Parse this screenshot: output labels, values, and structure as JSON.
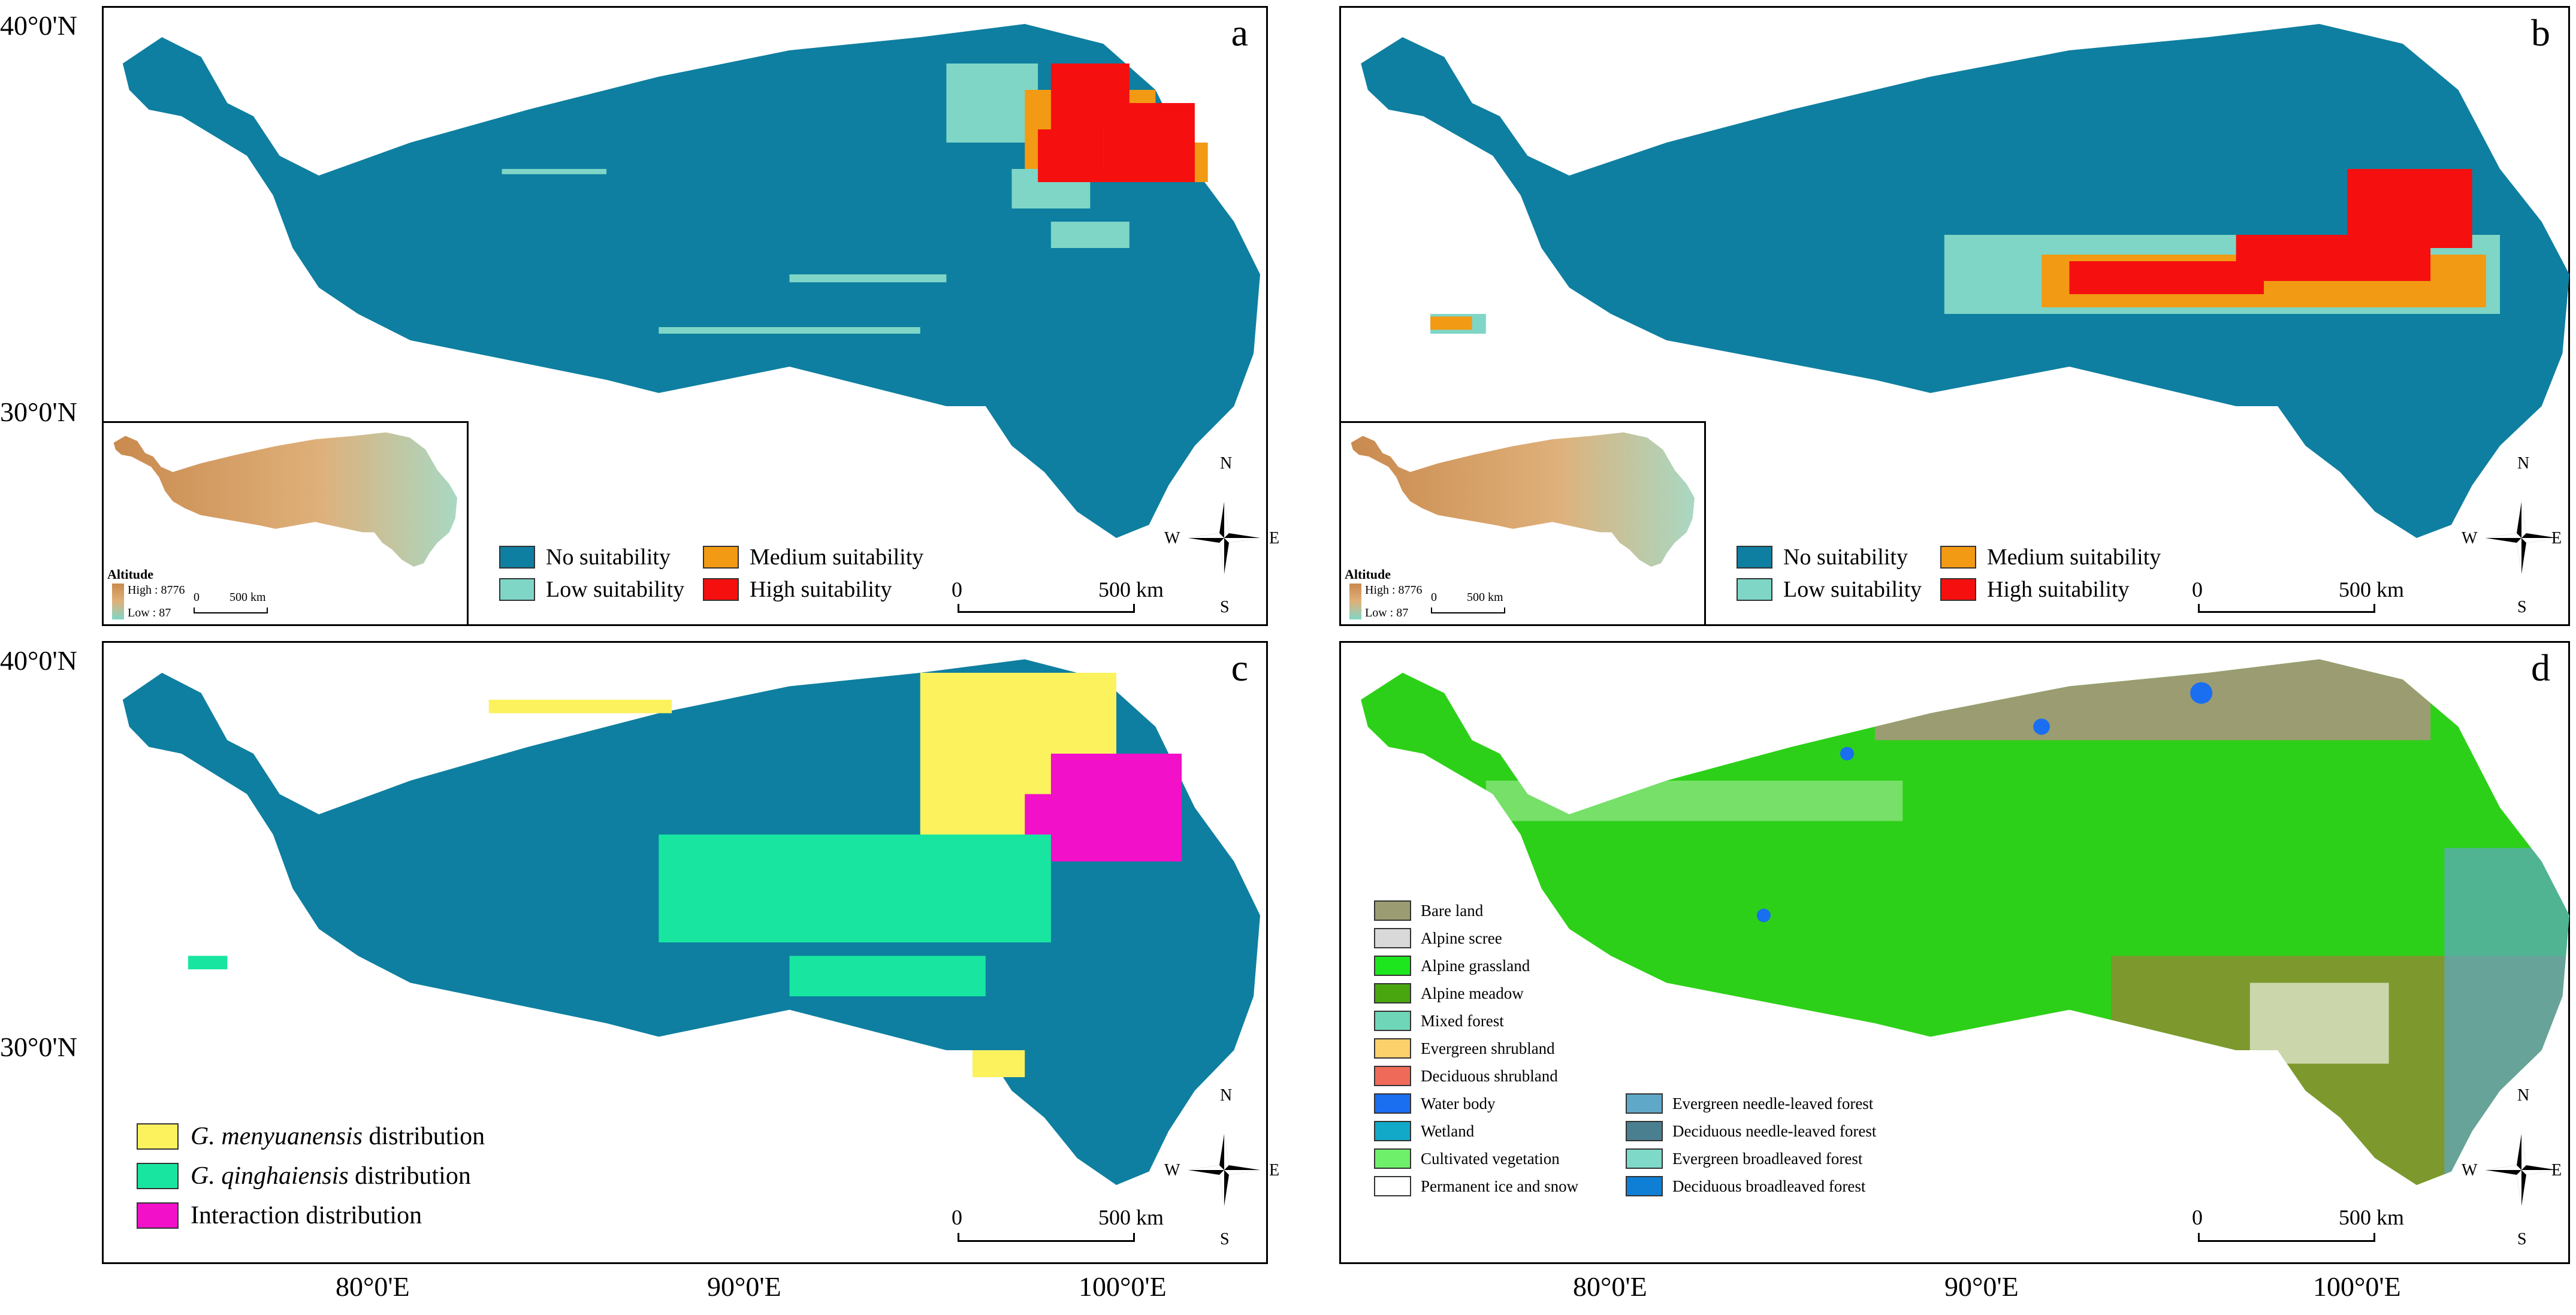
{
  "axes": {
    "lat_labels": [
      "40°0'N",
      "30°0'N"
    ],
    "lon_labels": [
      "80°0'E",
      "90°0'E",
      "100°0'E"
    ]
  },
  "panels": {
    "a": {
      "label": "a"
    },
    "b": {
      "label": "b"
    },
    "c": {
      "label": "c"
    },
    "d": {
      "label": "d"
    }
  },
  "suitability_legend": [
    {
      "label": "No suitability",
      "color": "#0e7fa0"
    },
    {
      "label": "Low suitability",
      "color": "#7fd6c6"
    },
    {
      "label": "Medium suitability",
      "color": "#f29a13"
    },
    {
      "label": "High suitability",
      "color": "#f50f0f"
    }
  ],
  "distribution_legend": [
    {
      "species": "G. menyuanensis",
      "suffix": " distribution",
      "color": "#fbf25e"
    },
    {
      "species": "G. qinghaiensis",
      "suffix": " distribution",
      "color": "#18e6a0"
    },
    {
      "species": "",
      "suffix": "Interaction distribution",
      "color": "#f210c8"
    }
  ],
  "landcover_legend": [
    {
      "label": "Bare land",
      "color": "#9c9c72"
    },
    {
      "label": "Alpine scree",
      "color": "#d9d9d9"
    },
    {
      "label": "Alpine grassland",
      "color": "#1ee61e"
    },
    {
      "label": "Alpine meadow",
      "color": "#4aa60f"
    },
    {
      "label": "Mixed forest",
      "color": "#6fd6b8"
    },
    {
      "label": "Evergreen shrubland",
      "color": "#fcd06a"
    },
    {
      "label": "Deciduous shrubland",
      "color": "#f06a5a"
    },
    {
      "label": "Water body",
      "color": "#1a6ef0"
    },
    {
      "label": "Wetland",
      "color": "#12a8c8"
    },
    {
      "label": "Cultivated vegetation",
      "color": "#6ff06a"
    },
    {
      "label": "Permanent ice and snow",
      "color": "#ffffff"
    },
    {
      "label": "Evergreen needle-leaved forest",
      "color": "#5fa8c8"
    },
    {
      "label": "Deciduous needle-leaved forest",
      "color": "#4a7f8f"
    },
    {
      "label": "Evergreen broadleaved forest",
      "color": "#7fd9c8"
    },
    {
      "label": "Deciduous broadleaved forest",
      "color": "#0f7fd6"
    }
  ],
  "scalebar": {
    "zero": "0",
    "distance": "500 km"
  },
  "inset": {
    "title": "Altitude",
    "high": "High : 8776",
    "low": "Low : 87",
    "scale_zero": "0",
    "scale_distance": "500 km"
  },
  "compass": {
    "n": "N",
    "s": "S",
    "e": "E",
    "w": "W"
  },
  "colors": {
    "no_suitability": "#0e7fa0",
    "outline": "#000000"
  }
}
